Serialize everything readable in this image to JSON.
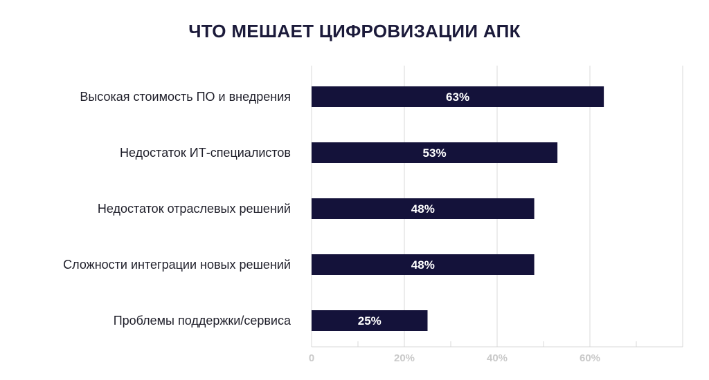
{
  "chart_data": {
    "type": "bar",
    "orientation": "horizontal",
    "title": "ЧТО МЕШАЕТ ЦИФРОВИЗАЦИИ АПК",
    "categories": [
      "Высокая стоимость ПО и внедрения",
      "Недостаток ИТ-специалистов",
      "Недостаток отраслевых решений",
      "Сложности интеграции новых решений",
      "Проблемы поддержки/сервиса"
    ],
    "values": [
      63,
      53,
      48,
      48,
      25
    ],
    "value_labels": [
      "63%",
      "53%",
      "48%",
      "48%",
      "25%"
    ],
    "xticks": [
      "0",
      "20%",
      "40%",
      "60%"
    ],
    "xtick_values": [
      0,
      20,
      40,
      60
    ],
    "xlim": [
      0,
      80
    ],
    "grid": true,
    "colors": {
      "bar": "#14123a",
      "grid": "#d9d9d9",
      "tick_text": "#c9c9c9",
      "title": "#1b1a3a"
    }
  }
}
